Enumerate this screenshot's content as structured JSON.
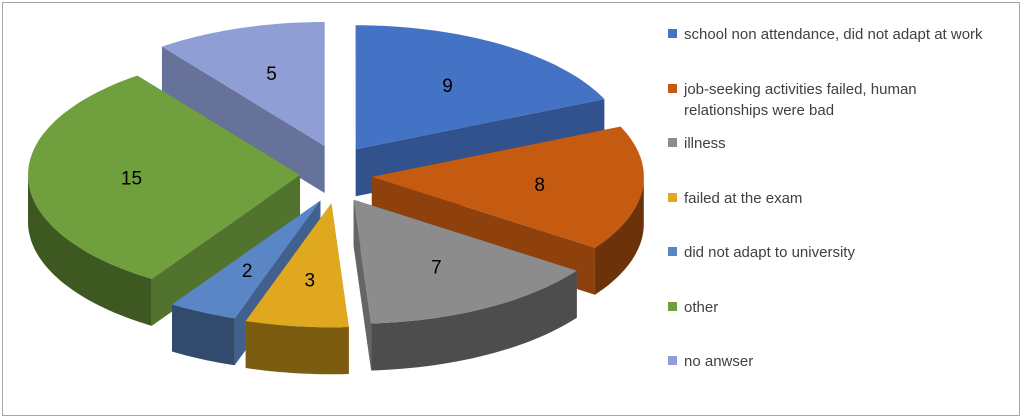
{
  "chart_data": {
    "type": "pie",
    "style": "3d-exploded",
    "title": "",
    "slices": [
      {
        "label": "school non attendance, did not adapt at work",
        "value": 9,
        "color": "#4472c4"
      },
      {
        "label": "job-seeking activities failed, human relationships were bad",
        "value": 8,
        "color": "#c55a11"
      },
      {
        "label": "illness",
        "value": 7,
        "color": "#8c8c8c"
      },
      {
        "label": "failed at the exam",
        "value": 3,
        "color": "#e0a81e"
      },
      {
        "label": "did not adapt to university",
        "value": 2,
        "color": "#5b86c5"
      },
      {
        "label": "other",
        "value": 15,
        "color": "#70a03e"
      },
      {
        "label": "no anwser",
        "value": 5,
        "color": "#8f9fd6"
      }
    ],
    "legend_position": "right",
    "data_labels": true
  }
}
